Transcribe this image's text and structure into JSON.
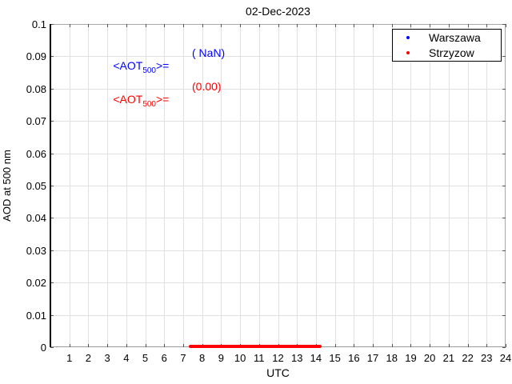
{
  "chart_data": {
    "type": "scatter",
    "title": "02-Dec-2023",
    "xlabel": "UTC",
    "ylabel": "AOD at 500 nm",
    "xlim": [
      0,
      24
    ],
    "ylim": [
      0,
      0.1
    ],
    "x_ticks": [
      "1",
      "2",
      "3",
      "4",
      "5",
      "6",
      "7",
      "8",
      "9",
      "10",
      "11",
      "12",
      "13",
      "14",
      "15",
      "16",
      "17",
      "18",
      "19",
      "20",
      "21",
      "22",
      "23",
      "24"
    ],
    "y_ticks": [
      "0",
      "0.01",
      "0.02",
      "0.03",
      "0.04",
      "0.05",
      "0.06",
      "0.07",
      "0.08",
      "0.09",
      "0.1"
    ],
    "grid": true,
    "legend_position": "top-right",
    "series": [
      {
        "name": "Warszawa",
        "color": "#0000ff",
        "marker": "dot",
        "points": [],
        "mean_aot_500": "NaN"
      },
      {
        "name": "Strzyzow",
        "color": "#ff0000",
        "marker": "dot",
        "y_value": 0.0,
        "x_range": [
          7.3,
          14.3
        ],
        "mean_aot_500": "0.00"
      }
    ],
    "annotations": [
      {
        "prefix": "<AOT",
        "sub": "500",
        "suffix": ">=",
        "value": "( NaN)",
        "color": "#0000ff"
      },
      {
        "prefix": "<AOT",
        "sub": "500",
        "suffix": ">=",
        "value": "(0.00)",
        "color": "#ff0000"
      }
    ]
  }
}
